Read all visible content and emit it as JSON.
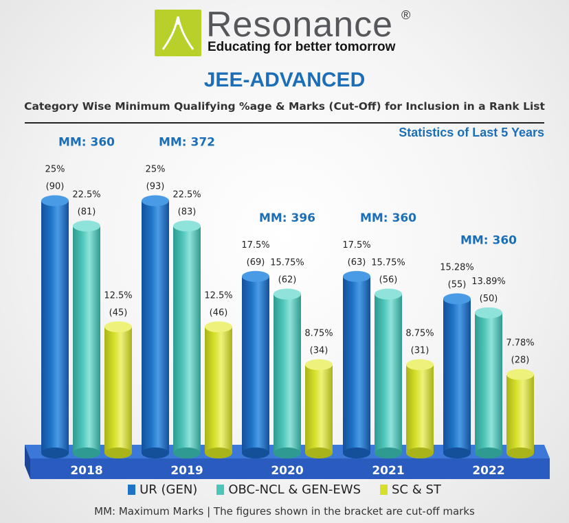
{
  "brand": {
    "name": "Resonance",
    "reg_mark": "®",
    "tagline": "Educating for better tomorrow"
  },
  "header": {
    "title": "JEE-ADVANCED",
    "subtitle": "Category Wise Minimum Qualifying %age & Marks (Cut-Off) for Inclusion in a Rank List",
    "stats_note": "Statistics of Last 5 Years"
  },
  "colors": {
    "ur": "#1e73c6",
    "obc": "#4ec5b9",
    "sc": "#d6e02a",
    "base": "#2a5cc0"
  },
  "icons": {
    "logo": "resonance-logo-icon"
  },
  "chart_data": {
    "type": "bar",
    "title": "JEE-ADVANCED",
    "categories": [
      "2018",
      "2019",
      "2020",
      "2021",
      "2022"
    ],
    "max_marks": [
      "MM: 360",
      "MM: 372",
      "MM: 396",
      "MM: 360",
      "MM: 360"
    ],
    "series": [
      {
        "name": "UR (GEN)",
        "values": [
          25,
          25,
          17.5,
          17.5,
          15.28
        ],
        "labels": [
          "25%",
          "25%",
          "17.5%",
          "17.5%",
          "15.28%"
        ],
        "marks": [
          "(90)",
          "(93)",
          "(69)",
          "(63)",
          "(55)"
        ]
      },
      {
        "name": "OBC-NCL & GEN-EWS",
        "values": [
          22.5,
          22.5,
          15.75,
          15.75,
          13.89
        ],
        "labels": [
          "22.5%",
          "22.5%",
          "15.75%",
          "15.75%",
          "13.89%"
        ],
        "marks": [
          "(81)",
          "(83)",
          "(62)",
          "(56)",
          "(50)"
        ]
      },
      {
        "name": "SC & ST",
        "values": [
          12.5,
          12.5,
          8.75,
          8.75,
          7.78
        ],
        "labels": [
          "12.5%",
          "12.5%",
          "8.75%",
          "8.75%",
          "7.78%"
        ],
        "marks": [
          "(45)",
          "(46)",
          "(34)",
          "(31)",
          "(28)"
        ]
      }
    ],
    "legend_position": "bottom"
  },
  "footnote": "MM: Maximum Marks | The figures shown in the bracket are cut-off marks"
}
